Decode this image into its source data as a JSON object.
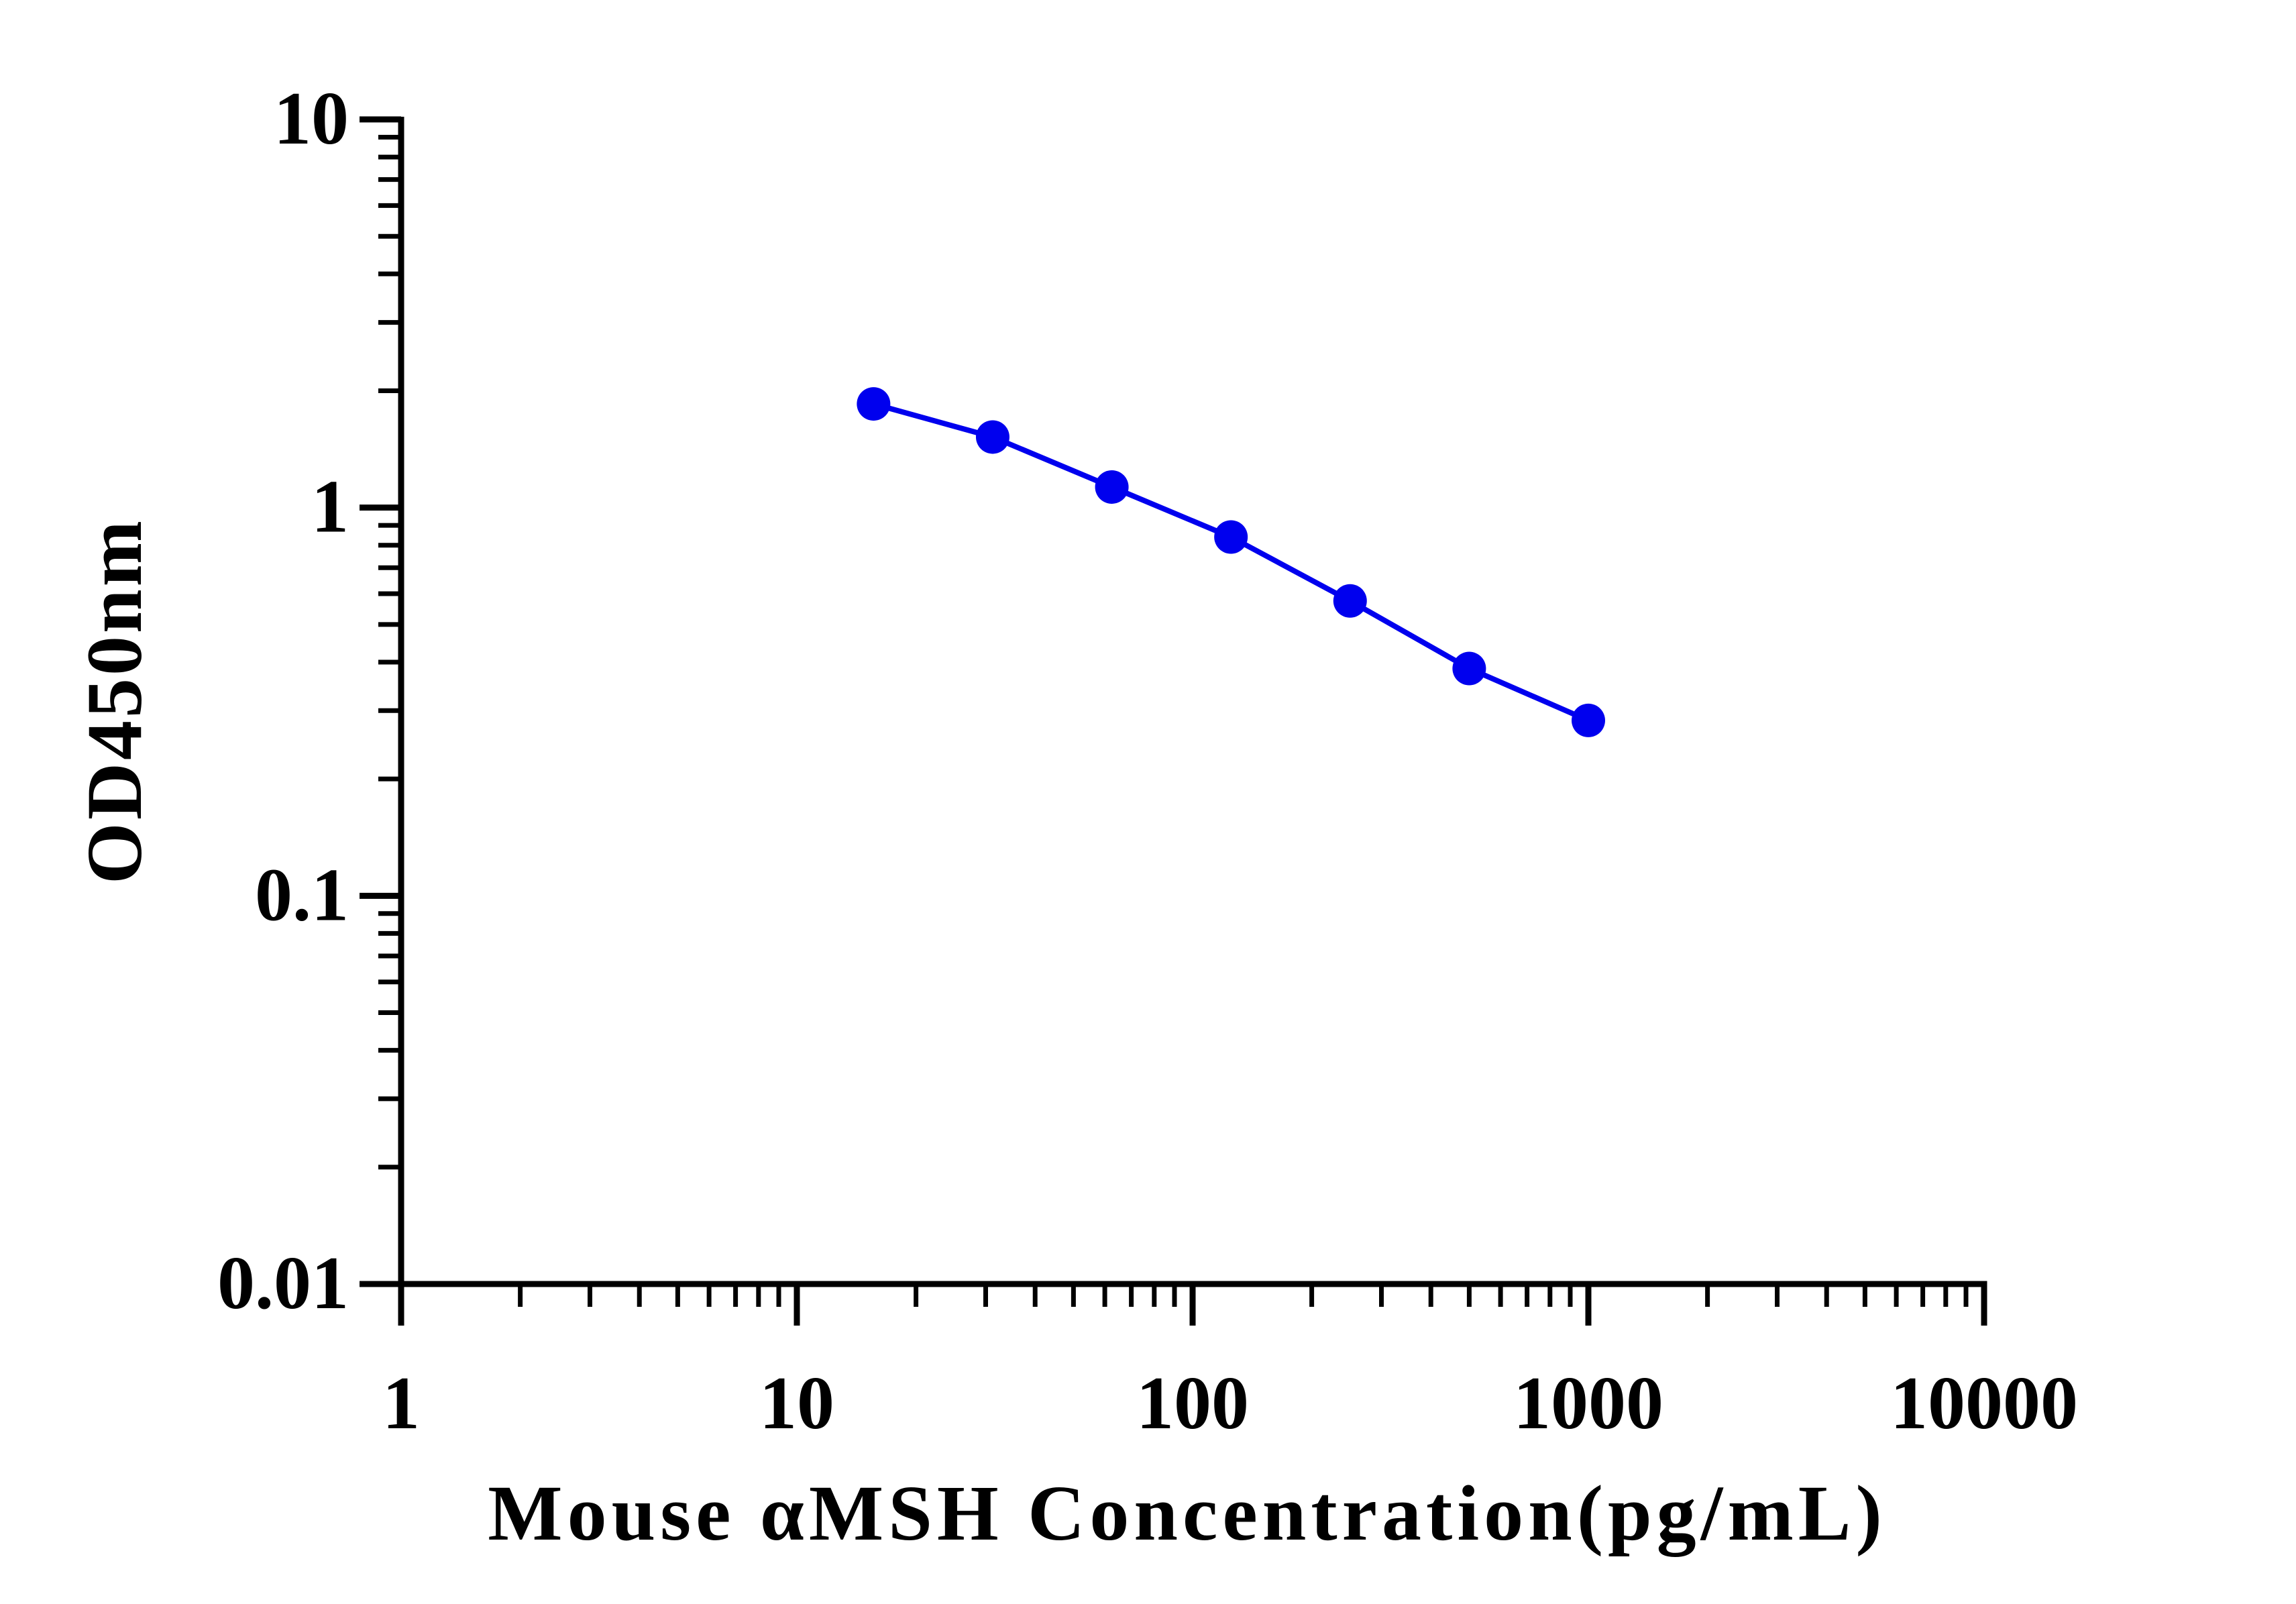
{
  "chart_data": {
    "type": "scatter",
    "title": "",
    "xlabel": "Mouse αMSH Concentration(pg/mL)",
    "ylabel": "OD450nm",
    "xscale": "log",
    "yscale": "log",
    "xlim": [
      1,
      10000
    ],
    "ylim": [
      0.01,
      10
    ],
    "x_ticks": [
      "1",
      "10",
      "100",
      "1000",
      "10000"
    ],
    "y_ticks": [
      "0.01",
      "0.1",
      "1",
      "10"
    ],
    "grid": false,
    "legend": "none",
    "series": [
      {
        "color": "#0000ee",
        "line": true,
        "markers": "filled-circle",
        "points": [
          {
            "x": 15.625,
            "y": 1.85
          },
          {
            "x": 31.25,
            "y": 1.52
          },
          {
            "x": 62.5,
            "y": 1.13
          },
          {
            "x": 125,
            "y": 0.84
          },
          {
            "x": 250,
            "y": 0.575
          },
          {
            "x": 500,
            "y": 0.385
          },
          {
            "x": 1000,
            "y": 0.283
          }
        ]
      }
    ]
  }
}
